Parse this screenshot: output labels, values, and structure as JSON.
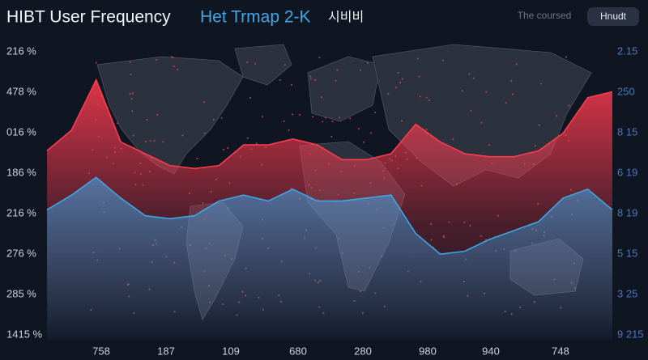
{
  "header": {
    "title": "HIBT User Frequency",
    "subtitle": "Het Trmap 2-K",
    "tag": "시비비",
    "link": "The coursed",
    "button": "Hnudt"
  },
  "left_labels": [
    "216 %",
    "478 %",
    "016 %",
    "186 %",
    "216 %",
    "276 %",
    "285 %",
    "1415 %"
  ],
  "right_labels": [
    "2.15",
    "250",
    "8 15",
    "6 19",
    "8 19",
    "5 15",
    "3 25",
    "9 215"
  ],
  "bottom_labels": [
    "758",
    "187",
    "109",
    "680",
    "280",
    "980",
    "940",
    "748"
  ],
  "layers": [
    {
      "color": "#ff3b4f",
      "values": [
        0.64,
        0.71,
        0.88,
        0.67,
        0.63,
        0.59,
        0.58,
        0.59,
        0.66,
        0.66,
        0.68,
        0.66,
        0.61,
        0.61,
        0.63,
        0.73,
        0.67,
        0.63,
        0.62,
        0.62,
        0.64,
        0.7,
        0.82,
        0.84
      ]
    },
    {
      "color": "#3ea6e6",
      "values": [
        0.44,
        0.49,
        0.55,
        0.48,
        0.42,
        0.41,
        0.42,
        0.47,
        0.49,
        0.47,
        0.51,
        0.47,
        0.47,
        0.48,
        0.49,
        0.36,
        0.29,
        0.3,
        0.34,
        0.37,
        0.4,
        0.48,
        0.51,
        0.44
      ]
    }
  ]
}
